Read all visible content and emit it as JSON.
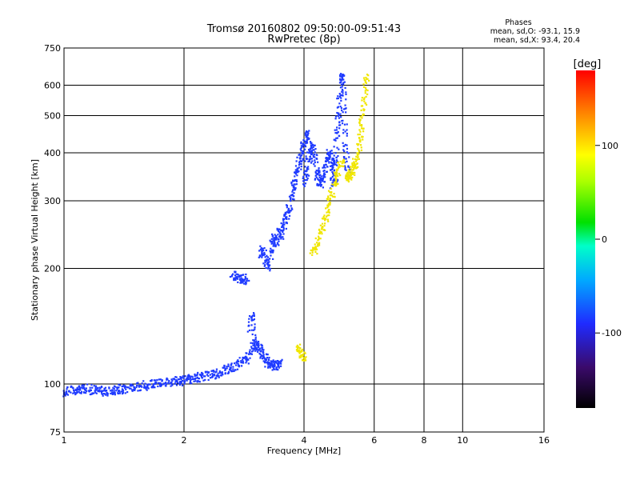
{
  "chart_data": {
    "type": "scatter",
    "title": "Tromsø 20160802 09:50:00-09:51:43",
    "subtitle": "RwPretec (8p)",
    "xlabel": "Frequency [MHz]",
    "ylabel": "Stationary phase Virtual Height [km]",
    "x_scale": "log",
    "y_scale": "log",
    "xlim": [
      1,
      16
    ],
    "ylim": [
      75,
      750
    ],
    "x_ticks": [
      "1",
      "2",
      "4",
      "6",
      "8",
      "10",
      "16"
    ],
    "x_tick_values": [
      1,
      2,
      4,
      6,
      8,
      10,
      16
    ],
    "y_ticks": [
      "75",
      "100",
      "200",
      "300",
      "400",
      "500",
      "600",
      "750"
    ],
    "y_tick_values": [
      75,
      100,
      200,
      300,
      400,
      500,
      600,
      750
    ],
    "grid": true,
    "legend": {
      "title": "Phases",
      "lines": [
        "mean, sd,O: -93.1, 15.9",
        "mean, sd,X:  93.4, 20.4"
      ]
    },
    "colorbar": {
      "label": "[deg]",
      "range": [
        -180,
        180
      ],
      "ticks": [
        "100",
        "0",
        "-100"
      ],
      "tick_values": [
        100,
        0,
        -100
      ]
    },
    "series": [
      {
        "name": "O",
        "phase": -93,
        "color": "#1f3bff",
        "traces": [
          {
            "x": [
              1.0,
              1.03,
              1.06,
              1.09,
              1.12,
              1.16,
              1.2,
              1.24,
              1.28,
              1.32,
              1.36,
              1.4,
              1.45,
              1.5,
              1.56,
              1.62,
              1.68,
              1.74,
              1.8,
              1.86,
              1.92,
              1.98,
              2.04,
              2.1,
              2.16,
              2.22,
              2.3,
              2.38,
              2.46,
              2.54,
              2.62,
              2.7,
              2.78,
              2.86,
              2.94,
              3.0
            ],
            "y": [
              95,
              96,
              96,
              97,
              98,
              96,
              97,
              96,
              95,
              96,
              97,
              97,
              98,
              98,
              99,
              99,
              100,
              100,
              101,
              101,
              102,
              102,
              103,
              103,
              104,
              104,
              105,
              106,
              107,
              109,
              110,
              112,
              114,
              116,
              120,
              126
            ]
          },
          {
            "x": [
              2.64,
              2.7,
              2.76,
              2.82,
              2.88
            ],
            "y": [
              192,
              190,
              188,
              187,
              188
            ]
          },
          {
            "x": [
              2.92,
              2.96,
              3.0,
              3.04,
              3.08,
              3.12,
              3.16,
              3.2,
              3.26,
              3.32,
              3.38,
              3.44,
              3.5
            ],
            "y": [
              138,
              150,
              130,
              124,
              126,
              122,
              118,
              116,
              113,
              112,
              112,
              112,
              113
            ]
          },
          {
            "x": [
              3.1,
              3.15,
              3.2,
              3.25,
              3.3,
              3.35,
              3.4,
              3.45,
              3.5,
              3.55,
              3.6,
              3.65,
              3.7,
              3.75,
              3.8,
              3.85,
              3.9,
              3.95,
              4.0,
              4.05,
              4.1
            ],
            "y": [
              215,
              225,
              210,
              200,
              220,
              240,
              230,
              250,
              245,
              260,
              270,
              280,
              300,
              320,
              340,
              360,
              380,
              400,
              420,
              440,
              450
            ]
          },
          {
            "x": [
              4.0,
              4.05,
              4.1,
              4.15,
              4.2,
              4.25,
              4.3,
              4.35,
              4.4,
              4.45,
              4.5,
              4.55,
              4.6,
              4.65,
              4.7,
              4.75,
              4.8
            ],
            "y": [
              330,
              350,
              380,
              400,
              420,
              390,
              360,
              340,
              330,
              340,
              360,
              380,
              400,
              390,
              370,
              350,
              340
            ]
          },
          {
            "x": [
              4.72,
              4.76,
              4.8,
              4.84,
              4.88,
              4.92,
              4.96,
              5.0,
              5.04,
              5.08,
              5.12,
              5.16
            ],
            "y": [
              330,
              360,
              400,
              450,
              500,
              560,
              620,
              640,
              520,
              420,
              380,
              350
            ]
          }
        ]
      },
      {
        "name": "X",
        "phase": 93,
        "color": "#f0e600",
        "traces": [
          {
            "x": [
              3.85,
              3.9,
              3.95,
              4.0
            ],
            "y": [
              126,
              122,
              119,
              117
            ]
          },
          {
            "x": [
              4.2,
              4.28,
              4.36,
              4.44,
              4.52,
              4.6,
              4.68,
              4.76,
              4.84,
              4.92,
              5.0
            ],
            "y": [
              220,
              228,
              240,
              255,
              270,
              290,
              310,
              330,
              350,
              370,
              380
            ]
          },
          {
            "x": [
              5.1,
              5.16,
              5.22,
              5.28,
              5.34,
              5.4,
              5.46,
              5.52,
              5.58,
              5.64,
              5.7,
              5.76
            ],
            "y": [
              350,
              345,
              348,
              355,
              365,
              380,
              400,
              430,
              470,
              520,
              580,
              640
            ]
          }
        ]
      }
    ]
  }
}
